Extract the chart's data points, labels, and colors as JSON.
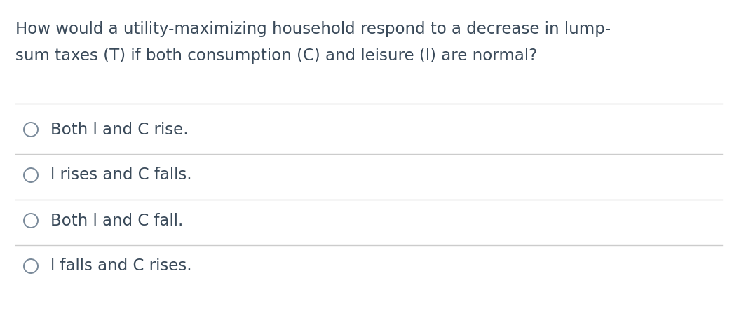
{
  "background_color": "#ffffff",
  "question_line1": "How would a utility-maximizing household respond to a decrease in lump-",
  "question_line2": "sum taxes (T) if both consumption (C) and leisure (l) are normal?",
  "options": [
    "Both l and C rise.",
    "l rises and C falls.",
    "Both l and C fall.",
    "l falls and C rises."
  ],
  "text_color": "#3a4a5a",
  "line_color": "#cccccc",
  "circle_edge_color": "#7a8a9a",
  "question_fontsize": 16.5,
  "option_fontsize": 16.5,
  "figsize": [
    10.44,
    4.74
  ],
  "dpi": 100
}
